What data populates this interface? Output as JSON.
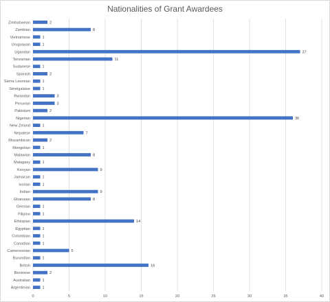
{
  "chart_data": {
    "type": "bar",
    "orientation": "horizontal",
    "title": "Nationalities of Grant Awardees",
    "xlabel": "",
    "ylabel": "",
    "xlim": [
      0,
      40
    ],
    "xticks": [
      0,
      5,
      10,
      15,
      20,
      25,
      30,
      35,
      40
    ],
    "grid": "vertical",
    "legend": "none",
    "bar_color": "#4472c4",
    "data_labels": true,
    "categories": [
      "Zimbabwean",
      "Zambian",
      "Vietnamese",
      "Uruguayan",
      "Ugandan",
      "Tanzanian",
      "Sudanese",
      "Spanish",
      "Sierra Leonean",
      "Sénégalaise",
      "Rwandan",
      "Peruvian",
      "Pakistani",
      "Nigerian",
      "New Zeland",
      "Nepalese",
      "Mozambican",
      "Mongolian",
      "Malawian",
      "Malagasy",
      "Kenyan",
      "Jamaican",
      "Ivorian",
      "Indian",
      "Ghanaian",
      "German",
      "Filipino",
      "Ethiopian",
      "Egyptian",
      "Colombian",
      "Canadian",
      "Cameroonian",
      "Burundian",
      "British",
      "Beninese",
      "Australian",
      "Argentinian"
    ],
    "values": [
      2,
      8,
      1,
      1,
      37,
      11,
      1,
      2,
      1,
      1,
      3,
      3,
      2,
      36,
      1,
      7,
      2,
      1,
      8,
      1,
      9,
      1,
      1,
      9,
      8,
      1,
      1,
      14,
      1,
      1,
      1,
      5,
      1,
      16,
      2,
      1,
      1
    ]
  }
}
